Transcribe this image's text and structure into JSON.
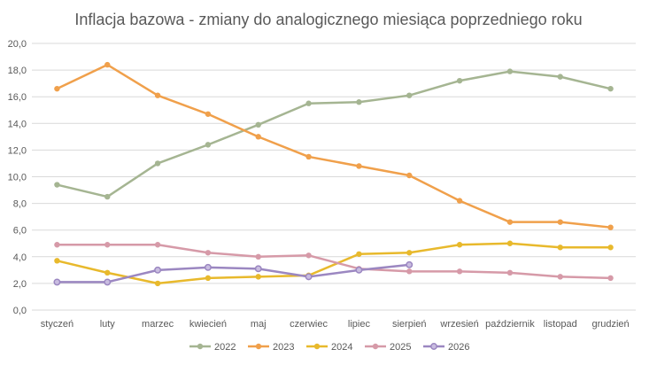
{
  "chart_data": {
    "type": "line",
    "title": "Inflacja bazowa - zmiany do analogicznego miesiąca poprzedniego roku",
    "xlabel": "",
    "ylabel": "",
    "categories": [
      "styczeń",
      "luty",
      "marzec",
      "kwiecień",
      "maj",
      "czerwiec",
      "lipiec",
      "sierpień",
      "wrzesień",
      "październik",
      "listopad",
      "grudzień"
    ],
    "ylim": [
      0,
      20
    ],
    "yticks": [
      "0,0",
      "2,0",
      "4,0",
      "6,0",
      "8,0",
      "10,0",
      "12,0",
      "14,0",
      "16,0",
      "18,0",
      "20,0"
    ],
    "grid": true,
    "legend_position": "bottom",
    "series": [
      {
        "name": "2022",
        "color": "#a5b592",
        "values": [
          9.4,
          8.5,
          11.0,
          12.4,
          13.9,
          15.5,
          15.6,
          16.1,
          17.2,
          17.9,
          17.5,
          16.6
        ]
      },
      {
        "name": "2023",
        "color": "#f0a04b",
        "values": [
          16.6,
          18.4,
          16.1,
          14.7,
          13.0,
          11.5,
          10.8,
          10.1,
          8.2,
          6.6,
          6.6,
          6.2
        ]
      },
      {
        "name": "2024",
        "color": "#e8b92c",
        "values": [
          3.7,
          2.8,
          2.0,
          2.4,
          2.5,
          2.6,
          4.2,
          4.3,
          4.9,
          5.0,
          4.7,
          4.7
        ]
      },
      {
        "name": "2025",
        "color": "#d69aa8",
        "values": [
          4.9,
          4.9,
          4.9,
          4.3,
          4.0,
          4.1,
          3.1,
          2.9,
          2.9,
          2.8,
          2.5,
          2.4
        ]
      },
      {
        "name": "2026",
        "color": "#9b87c1",
        "values": [
          2.1,
          2.1,
          3.0,
          3.2,
          3.1,
          2.5,
          3.0,
          3.4,
          null,
          null,
          null,
          null
        ]
      }
    ]
  }
}
